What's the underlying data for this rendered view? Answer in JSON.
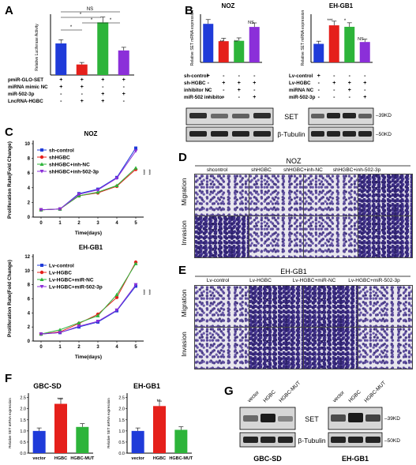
{
  "panel_letters": [
    "A",
    "B",
    "C",
    "D",
    "E",
    "F",
    "G"
  ],
  "panelA": {
    "ylabel": "Relative Luciferase Activity",
    "sig_labels": [
      "*",
      "*",
      "*",
      "*",
      "NS"
    ],
    "row_labels": [
      "pmiR-GLO-SET",
      "miRNA mimic NC",
      "miR-502-3p",
      "LncRNA-HGBC"
    ],
    "row_signs": [
      [
        "+",
        "+",
        "+",
        "+"
      ],
      [
        "+",
        "+",
        "-",
        "-"
      ],
      [
        "-",
        "-",
        "+",
        "+"
      ],
      [
        "-",
        "+",
        "+",
        "-"
      ]
    ],
    "colors": [
      "#1f3bd9",
      "#e5201b",
      "#2db43a",
      "#8b2fd9"
    ]
  },
  "panelB_NOZ": {
    "title": "NOZ",
    "ylabel": "Relative SET mRNA expression",
    "sig_labels": [
      "**",
      "**",
      "NS"
    ],
    "row_labels": [
      "sh-control",
      "sh-HGBC",
      "inhibitor NC",
      "miR-502 inhibitor"
    ],
    "row_signs": [
      [
        "+",
        "-",
        "-",
        "-"
      ],
      [
        "-",
        "+",
        "+",
        "+"
      ],
      [
        "-",
        "-",
        "+",
        "-"
      ],
      [
        "-",
        "-",
        "-",
        "+"
      ]
    ],
    "blot_labels": [
      "SET",
      "β-Tubulin"
    ],
    "colors": [
      "#1f3bd9",
      "#e5201b",
      "#2db43a",
      "#8b2fd9"
    ]
  },
  "panelB_EH": {
    "title": "EH-GB1",
    "ylabel": "Relative SET mRNA expression",
    "sig_labels": [
      "***",
      "*",
      "NS"
    ],
    "row_labels": [
      "Lv-control",
      "Lv-HGBC",
      "miRNA NC",
      "miR-502-3p"
    ],
    "row_signs": [
      [
        "+",
        "-",
        "-",
        "-"
      ],
      [
        "-",
        "+",
        "+",
        "+"
      ],
      [
        "-",
        "-",
        "+",
        "-"
      ],
      [
        "-",
        "-",
        "-",
        "+"
      ]
    ],
    "kd_labels": [
      "39KD",
      "50KD"
    ],
    "colors": [
      "#1f3bd9",
      "#e5201b",
      "#2db43a",
      "#8b2fd9"
    ]
  },
  "panelC_NOZ": {
    "title": "NOZ",
    "ylabel": "Proliferation Rate(Fold Change)",
    "xlabel": "Time(days)",
    "legend": [
      "sh-control",
      "shHGBC",
      "shHGBC+inh-NC",
      "shHGBC+inh-502-3p"
    ],
    "sig_labels": [
      "***",
      "***"
    ],
    "xticks": [
      "0",
      "1",
      "2",
      "3",
      "4",
      "5"
    ],
    "yticks": [
      "0",
      "2",
      "4",
      "6",
      "8",
      "10"
    ]
  },
  "panelC_EH": {
    "title": "EH-GB1",
    "ylabel": "Proliferation Rate(Fold Change)",
    "xlabel": "Time(days)",
    "legend": [
      "Lv-control",
      "Lv-HGBC",
      "Lv-HGBC+miR-NC",
      "Lv-HGBC+miR-502-3p"
    ],
    "sig_labels": [
      "***",
      "***"
    ],
    "xticks": [
      "0",
      "1",
      "2",
      "3",
      "4",
      "5"
    ],
    "yticks": [
      "0",
      "2",
      "4",
      "6",
      "8",
      "10",
      "12"
    ]
  },
  "panelD": {
    "title": "NOZ",
    "columns": [
      "shcontrol",
      "shHGBC",
      "shHGBC+inh-NC",
      "shHGBC+inh-502-3p"
    ],
    "rows": [
      "Migration",
      "Invasion"
    ]
  },
  "panelE": {
    "title": "EH-GB1",
    "columns": [
      "Lv-control",
      "Lv-HGBC",
      "Lv-HGBC+miR-NC",
      "Lv-HGBC+miR-502-3p"
    ],
    "rows": [
      "Migration",
      "Invasion"
    ]
  },
  "panelF_GBC": {
    "title": "GBC-SD",
    "ylabel": "Relative SET mRNA expression",
    "categories": [
      "vector",
      "HGBC",
      "HGBC-MUT"
    ],
    "sig_labels": [
      "***"
    ],
    "yticks": [
      "0.0",
      "0.5",
      "1.0",
      "1.5",
      "2.0",
      "2.5"
    ],
    "colors": [
      "#1f3bd9",
      "#e5201b",
      "#2db43a"
    ]
  },
  "panelF_EH": {
    "title": "EH-GB1",
    "ylabel": "Relative SET mRNA expression",
    "categories": [
      "vector",
      "HGBC",
      "HGBC-MUT"
    ],
    "sig_labels": [
      "**"
    ],
    "yticks": [
      "0.0",
      "0.5",
      "1.0",
      "1.5",
      "2.0",
      "2.5"
    ],
    "colors": [
      "#1f3bd9",
      "#e5201b",
      "#2db43a"
    ]
  },
  "panelG": {
    "lanes": [
      "vector",
      "HGBC",
      "HGBC-MUT"
    ],
    "blot_labels": [
      "SET",
      "β-Tubulin"
    ],
    "kd_labels": [
      "39KD",
      "50KD"
    ],
    "cells": [
      "GBC-SD",
      "EH-GB1"
    ]
  },
  "chart_data": [
    {
      "type": "bar",
      "id": "A",
      "categories": [
        "1",
        "2",
        "3",
        "4"
      ],
      "values": [
        1.35,
        0.45,
        2.25,
        1.05
      ],
      "ylim": [
        0,
        2.6
      ],
      "title": "",
      "xlabel": "",
      "ylabel": "Relative Luciferase Activity"
    },
    {
      "type": "bar",
      "id": "B_NOZ",
      "title": "NOZ",
      "categories": [
        "1",
        "2",
        "3",
        "4"
      ],
      "values": [
        1.0,
        0.55,
        0.56,
        0.92
      ],
      "ylim": [
        0,
        1.25
      ],
      "ylabel": "Relative SET mRNA expression"
    },
    {
      "type": "bar",
      "id": "B_EH",
      "title": "EH-GB1",
      "categories": [
        "1",
        "2",
        "3",
        "4"
      ],
      "values": [
        1.0,
        2.0,
        1.92,
        1.1
      ],
      "ylim": [
        0,
        2.6
      ],
      "ylabel": "Relative SET mRNA expression"
    },
    {
      "type": "line",
      "id": "C_NOZ",
      "title": "NOZ",
      "x": [
        0,
        1,
        2,
        3,
        4,
        5
      ],
      "xlabel": "Time(days)",
      "ylabel": "Proliferation Rate(Fold Change)",
      "ylim": [
        0,
        10
      ],
      "series": [
        {
          "name": "sh-control",
          "values": [
            1.0,
            1.1,
            3.2,
            3.8,
            5.4,
            9.4
          ]
        },
        {
          "name": "shHGBC",
          "values": [
            1.0,
            1.1,
            2.9,
            3.3,
            4.2,
            6.5
          ]
        },
        {
          "name": "shHGBC+inh-NC",
          "values": [
            1.0,
            1.1,
            2.9,
            3.4,
            4.3,
            6.7
          ]
        },
        {
          "name": "shHGBC+inh-502-3p",
          "values": [
            1.0,
            1.1,
            3.1,
            3.7,
            5.3,
            9.0
          ]
        }
      ]
    },
    {
      "type": "line",
      "id": "C_EH",
      "title": "EH-GB1",
      "x": [
        0,
        1,
        2,
        3,
        4,
        5
      ],
      "xlabel": "Time(days)",
      "ylabel": "Proliferation Rate(Fold Change)",
      "ylim": [
        0,
        12
      ],
      "series": [
        {
          "name": "Lv-control",
          "values": [
            1.0,
            1.2,
            2.0,
            2.7,
            4.3,
            7.8
          ]
        },
        {
          "name": "Lv-HGBC",
          "values": [
            1.0,
            1.3,
            2.5,
            3.8,
            6.2,
            11.2
          ]
        },
        {
          "name": "Lv-HGBC+miR-NC",
          "values": [
            1.0,
            1.6,
            2.6,
            3.6,
            6.6,
            11.0
          ]
        },
        {
          "name": "Lv-HGBC+miR-502-3p",
          "values": [
            1.0,
            1.2,
            2.1,
            2.8,
            4.4,
            8.0
          ]
        }
      ]
    },
    {
      "type": "bar",
      "id": "F_GBC",
      "title": "GBC-SD",
      "categories": [
        "vector",
        "HGBC",
        "HGBC-MUT"
      ],
      "values": [
        1.0,
        2.22,
        1.18
      ],
      "ylim": [
        0,
        2.7
      ],
      "ylabel": "Relative SET mRNA expression"
    },
    {
      "type": "bar",
      "id": "F_EH",
      "title": "EH-GB1",
      "categories": [
        "vector",
        "HGBC",
        "HGBC-MUT"
      ],
      "values": [
        1.0,
        2.12,
        1.05
      ],
      "ylim": [
        0,
        2.7
      ],
      "ylabel": "Relative SET mRNA expression"
    }
  ]
}
